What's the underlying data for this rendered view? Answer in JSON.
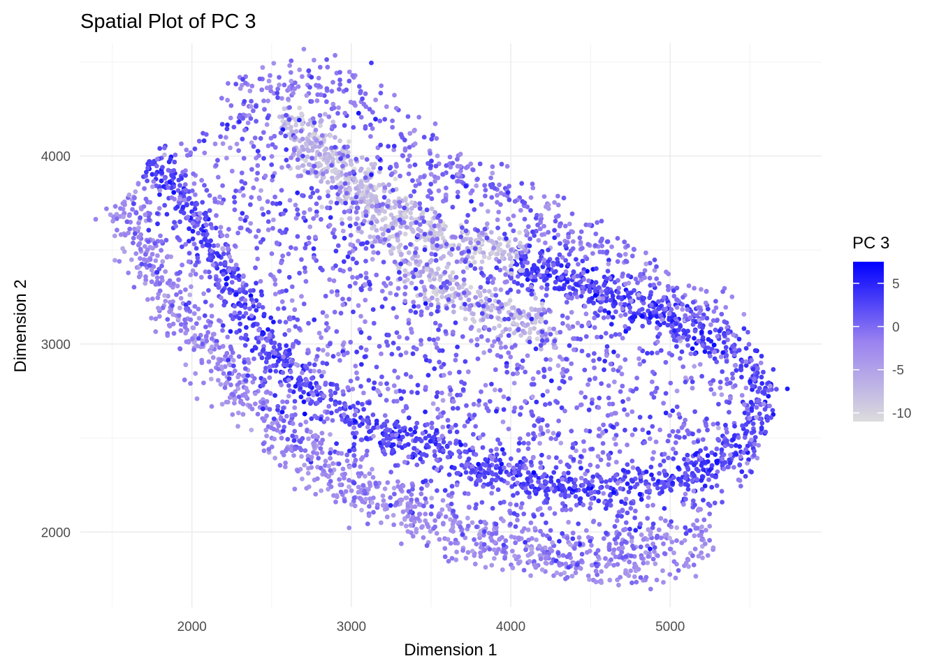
{
  "chart_data": {
    "type": "scatter",
    "title": "Spatial Plot of PC 3",
    "xlabel": "Dimension 1",
    "ylabel": "Dimension 2",
    "xlim": [
      1300,
      5950
    ],
    "ylim": [
      1600,
      4600
    ],
    "x_ticks": [
      2000,
      3000,
      4000,
      5000
    ],
    "y_ticks": [
      2000,
      3000,
      4000
    ],
    "grid": true,
    "legend": {
      "title": "PC 3",
      "position": "right",
      "type": "colorbar",
      "range": [
        -11,
        7.5
      ],
      "ticks": [
        5,
        0,
        -5,
        -10
      ],
      "color_low": "#dcdcdc",
      "color_high": "#0000ff"
    },
    "regions": [
      {
        "name": "left outer band",
        "mean_pc3": -3,
        "x_range": [
          1500,
          2400
        ],
        "y_range": [
          2600,
          3800
        ]
      },
      {
        "name": "inner dark band",
        "mean_pc3": 3,
        "x_range": [
          1750,
          5600
        ],
        "y_range": [
          2200,
          4050
        ]
      },
      {
        "name": "light upper arc",
        "mean_pc3": -8,
        "x_range": [
          2550,
          4300
        ],
        "y_range": [
          3050,
          4250
        ]
      },
      {
        "name": "right dark band",
        "mean_pc3": 3,
        "x_range": [
          4200,
          5650
        ],
        "y_range": [
          2200,
          3300
        ]
      },
      {
        "name": "bottom outer band",
        "mean_pc3": -2,
        "x_range": [
          2400,
          5300
        ],
        "y_range": [
          1780,
          2400
        ]
      },
      {
        "name": "interior",
        "mean_pc3": 0,
        "x_range": [
          2200,
          5300
        ],
        "y_range": [
          2300,
          4400
        ]
      }
    ]
  }
}
